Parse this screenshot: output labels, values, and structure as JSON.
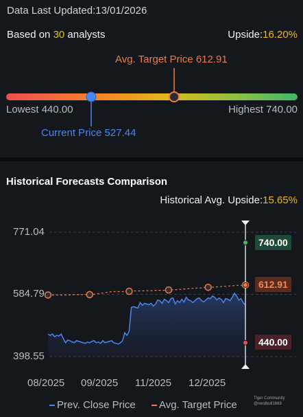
{
  "header": {
    "updated": "Data Last Updated:13/01/2026",
    "analysts_prefix": "Based on ",
    "analysts_count": "30",
    "analysts_suffix": " analysts",
    "upside_label": "Upside:",
    "upside_value": "16.20%"
  },
  "gauge": {
    "avg_target": "Avg. Target Price 612.91",
    "lowest": "Lowest 440.00",
    "highest": "Highest 740.00",
    "current": "Current Price 527.44",
    "low_value": 440.0,
    "high_value": 740.0,
    "current_value": 527.44,
    "avg_value": 612.91
  },
  "section": {
    "title": "Historical Forecasts Comparison",
    "hist_upside_label": "Historical Avg. Upside:",
    "hist_upside_value": "15.65%"
  },
  "chart_data": {
    "type": "line",
    "y_ticks": [
      "771.04",
      "584.79",
      "398.55"
    ],
    "x_ticks": [
      "08/2025",
      "09/2025",
      "11/2025",
      "12/2025"
    ],
    "ylim": [
      398.55,
      771.04
    ],
    "series": [
      {
        "name": "Prev. Close Price",
        "color": "#4a86f2",
        "values": [
          466,
          462,
          466,
          458,
          462,
          460,
          466,
          452,
          440,
          448,
          446,
          442,
          440,
          446,
          444,
          442,
          440,
          438,
          442,
          440,
          444,
          446,
          440,
          442,
          438,
          446,
          440,
          442,
          444,
          446,
          440,
          438,
          436,
          440,
          446,
          470,
          462,
          474,
          546,
          548,
          546,
          544,
          560,
          552,
          558,
          556,
          554,
          558,
          550,
          556,
          568,
          566,
          558,
          570,
          566,
          560,
          572,
          574,
          556,
          566,
          560,
          570,
          562,
          576,
          568,
          566,
          560,
          566,
          572,
          574,
          566,
          562,
          568,
          574,
          572,
          580,
          576,
          568,
          574,
          570,
          560,
          572,
          570,
          566,
          576,
          588,
          580,
          568,
          572,
          560,
          552
        ]
      },
      {
        "name": "Avg. Target Price",
        "color": "#f07a43",
        "values": [
          583,
          583,
          583,
          583,
          583,
          583,
          583,
          583,
          583,
          583,
          583,
          584,
          584,
          584,
          584,
          584,
          584,
          584,
          584,
          584,
          585,
          585,
          586,
          587,
          588,
          589,
          590,
          591,
          592,
          593,
          593,
          593,
          593,
          593,
          593,
          594,
          594,
          594,
          594,
          595,
          595,
          595,
          595,
          595,
          596,
          596,
          596,
          596,
          596,
          597,
          597,
          597,
          597,
          597,
          598,
          598,
          598,
          599,
          599,
          599,
          600,
          600,
          601,
          601,
          602,
          602,
          603,
          603,
          604,
          604,
          604,
          605,
          605,
          606,
          606,
          606,
          607,
          607,
          608,
          608,
          609,
          609,
          610,
          610,
          611,
          611,
          612,
          612,
          612,
          612,
          612.91
        ]
      }
    ],
    "marker_indices": [
      0,
      19,
      37,
      55,
      73,
      90
    ],
    "forecast": {
      "high": 740.0,
      "avg": 612.91,
      "low": 440.0
    },
    "tag_high": "740.00",
    "tag_avg": "612.91",
    "tag_low": "440.00",
    "grid": true,
    "legend": "bottom"
  },
  "legend": {
    "close": "Prev. Close Price",
    "target": "Avg. Target Price"
  },
  "watermark": {
    "line1": "Tiger Community",
    "line2": "@nerdbull1669"
  }
}
